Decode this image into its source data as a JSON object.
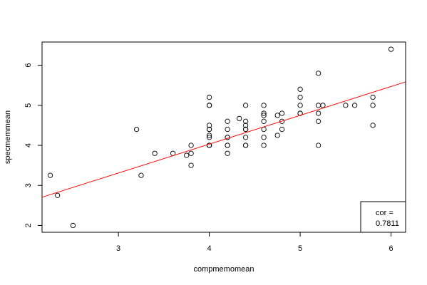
{
  "chart_data": {
    "type": "scatter",
    "xlabel": "compmemomean",
    "ylabel": "specmemmean",
    "xlim": [
      2.16,
      6.16
    ],
    "ylim": [
      1.83,
      6.58
    ],
    "xticks": [
      3,
      4,
      5,
      6
    ],
    "yticks": [
      2,
      3,
      4,
      5,
      6
    ],
    "grid": false,
    "point_style": "open-circle",
    "points": [
      {
        "x": 2.25,
        "y": 3.25
      },
      {
        "x": 2.33,
        "y": 2.75
      },
      {
        "x": 2.5,
        "y": 2.0
      },
      {
        "x": 3.2,
        "y": 4.4
      },
      {
        "x": 3.25,
        "y": 3.25
      },
      {
        "x": 3.4,
        "y": 3.8
      },
      {
        "x": 3.6,
        "y": 3.8
      },
      {
        "x": 3.75,
        "y": 3.75
      },
      {
        "x": 3.8,
        "y": 4.0
      },
      {
        "x": 3.8,
        "y": 3.8
      },
      {
        "x": 3.8,
        "y": 3.5
      },
      {
        "x": 4.0,
        "y": 5.2
      },
      {
        "x": 4.0,
        "y": 5.0
      },
      {
        "x": 4.0,
        "y": 5.0
      },
      {
        "x": 4.0,
        "y": 4.5
      },
      {
        "x": 4.0,
        "y": 4.4
      },
      {
        "x": 4.0,
        "y": 4.4
      },
      {
        "x": 4.0,
        "y": 4.25
      },
      {
        "x": 4.0,
        "y": 4.2
      },
      {
        "x": 4.0,
        "y": 4.0
      },
      {
        "x": 4.0,
        "y": 4.0
      },
      {
        "x": 4.0,
        "y": 4.0
      },
      {
        "x": 4.2,
        "y": 4.6
      },
      {
        "x": 4.2,
        "y": 4.4
      },
      {
        "x": 4.2,
        "y": 4.2
      },
      {
        "x": 4.2,
        "y": 4.2
      },
      {
        "x": 4.2,
        "y": 4.0
      },
      {
        "x": 4.2,
        "y": 4.0
      },
      {
        "x": 4.2,
        "y": 3.8
      },
      {
        "x": 4.33,
        "y": 4.67
      },
      {
        "x": 4.4,
        "y": 5.0
      },
      {
        "x": 4.4,
        "y": 4.6
      },
      {
        "x": 4.4,
        "y": 4.5
      },
      {
        "x": 4.4,
        "y": 4.4
      },
      {
        "x": 4.4,
        "y": 4.4
      },
      {
        "x": 4.4,
        "y": 4.2
      },
      {
        "x": 4.4,
        "y": 4.0
      },
      {
        "x": 4.4,
        "y": 4.0
      },
      {
        "x": 4.6,
        "y": 5.0
      },
      {
        "x": 4.6,
        "y": 4.8
      },
      {
        "x": 4.6,
        "y": 4.75
      },
      {
        "x": 4.6,
        "y": 4.6
      },
      {
        "x": 4.6,
        "y": 4.4
      },
      {
        "x": 4.6,
        "y": 4.2
      },
      {
        "x": 4.6,
        "y": 4.0
      },
      {
        "x": 4.75,
        "y": 4.75
      },
      {
        "x": 4.75,
        "y": 4.25
      },
      {
        "x": 4.8,
        "y": 4.8
      },
      {
        "x": 4.8,
        "y": 4.6
      },
      {
        "x": 4.8,
        "y": 4.4
      },
      {
        "x": 5.0,
        "y": 5.4
      },
      {
        "x": 5.0,
        "y": 5.2
      },
      {
        "x": 5.0,
        "y": 5.0
      },
      {
        "x": 5.0,
        "y": 4.8
      },
      {
        "x": 5.0,
        "y": 4.8
      },
      {
        "x": 5.2,
        "y": 5.8
      },
      {
        "x": 5.2,
        "y": 5.0
      },
      {
        "x": 5.2,
        "y": 4.8
      },
      {
        "x": 5.2,
        "y": 4.6
      },
      {
        "x": 5.2,
        "y": 4.0
      },
      {
        "x": 5.25,
        "y": 5.0
      },
      {
        "x": 5.5,
        "y": 5.0
      },
      {
        "x": 5.6,
        "y": 5.0
      },
      {
        "x": 5.8,
        "y": 5.2
      },
      {
        "x": 5.8,
        "y": 5.0
      },
      {
        "x": 5.8,
        "y": 4.5
      },
      {
        "x": 6.0,
        "y": 6.4
      }
    ],
    "fit_line": {
      "color": "#ff0000",
      "intercept": 1.15,
      "slope": 0.72
    },
    "legend": {
      "position": "bottom-right",
      "label": "cor =",
      "value": "0.7811"
    }
  }
}
